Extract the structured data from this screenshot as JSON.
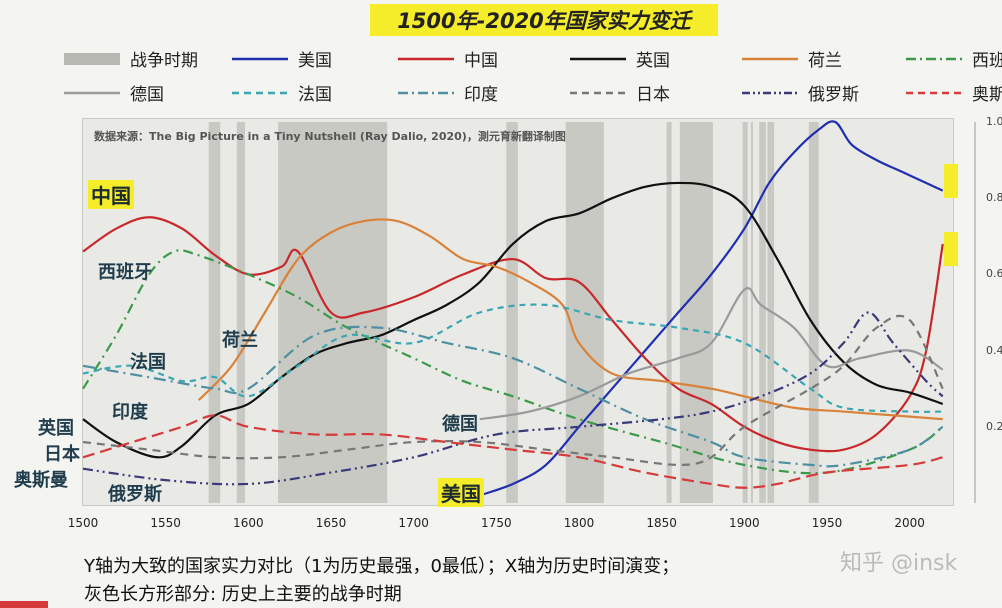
{
  "title": "1500年-2020年国家实力变迁",
  "source_note": "数据来源：The Big Picture in a Tiny Nutshell (Ray Dalio, 2020)，測元育新翻译制图",
  "legend": [
    {
      "label": "战争时期",
      "color": "#b8b8b2",
      "style": "band"
    },
    {
      "label": "美国",
      "color": "#1f2fb0",
      "style": "solid"
    },
    {
      "label": "中国",
      "color": "#c8282b",
      "style": "solid"
    },
    {
      "label": "英国",
      "color": "#111111",
      "style": "solid"
    },
    {
      "label": "荷兰",
      "color": "#d9823a",
      "style": "solid"
    },
    {
      "label": "西班",
      "color": "#3a9a4a",
      "style": "dashdot"
    },
    {
      "label": "德国",
      "color": "#9a9a9a",
      "style": "solid"
    },
    {
      "label": "法国",
      "color": "#3aa6b3",
      "style": "dash"
    },
    {
      "label": "印度",
      "color": "#4e8fa3",
      "style": "dashdot"
    },
    {
      "label": "日本",
      "color": "#777777",
      "style": "dash"
    },
    {
      "label": "俄罗斯",
      "color": "#3a3a7a",
      "style": "dashdotdot"
    },
    {
      "label": "奥斯",
      "color": "#d63a3a",
      "style": "dash"
    }
  ],
  "labels": {
    "china": "中国",
    "spain": "西班牙",
    "netherlands": "荷兰",
    "france": "法国",
    "india": "印度",
    "uk": "英国",
    "japan": "日本",
    "ottoman": "奥斯曼",
    "russia": "俄罗斯",
    "germany": "德国",
    "usa": "美国"
  },
  "footer": {
    "line1": "Y轴为大致的国家实力对比（1为历史最强，0最低）；X轴为历史时间演变；",
    "line2": "灰色长方形部分: 历史上主要的战争时期"
  },
  "watermark": "知乎 @insk",
  "chart_data": {
    "type": "line",
    "title": "1500年-2020年国家实力变迁",
    "xlabel": "",
    "ylabel": "",
    "xlim": [
      1500,
      2025
    ],
    "ylim": [
      0,
      1.0
    ],
    "x_ticks": [
      1500,
      1550,
      1600,
      1650,
      1700,
      1750,
      1800,
      1850,
      1900,
      1950,
      2000
    ],
    "y_ticks": [
      "0.2",
      "0.4",
      "0.6",
      "0.8",
      "1.0"
    ],
    "war_periods": [
      [
        1576,
        1583
      ],
      [
        1593,
        1598
      ],
      [
        1618,
        1684
      ],
      [
        1756,
        1763
      ],
      [
        1792,
        1815
      ],
      [
        1853,
        1856
      ],
      [
        1861,
        1881
      ],
      [
        1899,
        1902
      ],
      [
        1904,
        1905
      ],
      [
        1909,
        1913
      ],
      [
        1914,
        1918
      ],
      [
        1939,
        1945
      ]
    ],
    "series": [
      {
        "name": "美国",
        "color": "#1f2fb0",
        "dash": "",
        "x": [
          1740,
          1760,
          1780,
          1800,
          1820,
          1840,
          1860,
          1880,
          1900,
          1915,
          1930,
          1945,
          1955,
          1965,
          1980,
          1995,
          2010,
          2020
        ],
        "y": [
          0.02,
          0.05,
          0.1,
          0.2,
          0.3,
          0.4,
          0.5,
          0.6,
          0.72,
          0.84,
          0.92,
          0.98,
          1.0,
          0.94,
          0.9,
          0.87,
          0.84,
          0.82
        ]
      },
      {
        "name": "中国",
        "color": "#c8282b",
        "dash": "",
        "x": [
          1500,
          1520,
          1540,
          1560,
          1580,
          1600,
          1620,
          1630,
          1650,
          1670,
          1700,
          1730,
          1760,
          1780,
          1800,
          1820,
          1840,
          1860,
          1880,
          1900,
          1920,
          1940,
          1960,
          1980,
          2000,
          2010,
          2020
        ],
        "y": [
          0.66,
          0.72,
          0.75,
          0.72,
          0.65,
          0.6,
          0.62,
          0.66,
          0.5,
          0.5,
          0.54,
          0.6,
          0.64,
          0.59,
          0.58,
          0.48,
          0.38,
          0.3,
          0.26,
          0.2,
          0.16,
          0.14,
          0.14,
          0.18,
          0.28,
          0.4,
          0.68
        ]
      },
      {
        "name": "英国",
        "color": "#111111",
        "dash": "",
        "x": [
          1500,
          1520,
          1545,
          1560,
          1580,
          1600,
          1620,
          1640,
          1660,
          1680,
          1700,
          1720,
          1740,
          1760,
          1780,
          1800,
          1820,
          1840,
          1860,
          1880,
          1900,
          1920,
          1940,
          1960,
          1980,
          2000,
          2020
        ],
        "y": [
          0.22,
          0.16,
          0.12,
          0.15,
          0.23,
          0.26,
          0.33,
          0.39,
          0.42,
          0.44,
          0.48,
          0.52,
          0.58,
          0.68,
          0.74,
          0.76,
          0.8,
          0.83,
          0.84,
          0.83,
          0.78,
          0.64,
          0.48,
          0.37,
          0.31,
          0.29,
          0.26
        ]
      },
      {
        "name": "荷兰",
        "color": "#d9823a",
        "dash": "",
        "x": [
          1570,
          1590,
          1610,
          1630,
          1650,
          1670,
          1690,
          1710,
          1730,
          1750,
          1770,
          1790,
          1800,
          1820,
          1850,
          1880,
          1900,
          1930,
          1960,
          1990,
          2020
        ],
        "y": [
          0.27,
          0.36,
          0.5,
          0.64,
          0.71,
          0.74,
          0.74,
          0.7,
          0.64,
          0.62,
          0.58,
          0.52,
          0.42,
          0.34,
          0.32,
          0.3,
          0.28,
          0.25,
          0.24,
          0.23,
          0.22
        ]
      },
      {
        "name": "西班",
        "color": "#3a9a4a",
        "dash": "10,5,2,5",
        "x": [
          1500,
          1520,
          1540,
          1555,
          1570,
          1600,
          1630,
          1660,
          1700,
          1730,
          1760,
          1800,
          1850,
          1900,
          1950,
          2000,
          2020
        ],
        "y": [
          0.3,
          0.44,
          0.6,
          0.66,
          0.65,
          0.6,
          0.54,
          0.46,
          0.38,
          0.32,
          0.28,
          0.22,
          0.16,
          0.1,
          0.08,
          0.14,
          0.2
        ]
      },
      {
        "name": "德国",
        "color": "#9a9a9a",
        "dash": "",
        "x": [
          1740,
          1770,
          1800,
          1830,
          1860,
          1880,
          1900,
          1910,
          1930,
          1950,
          1970,
          2000,
          2020
        ],
        "y": [
          0.22,
          0.24,
          0.28,
          0.34,
          0.38,
          0.42,
          0.56,
          0.52,
          0.46,
          0.36,
          0.38,
          0.4,
          0.35
        ]
      },
      {
        "name": "法国",
        "color": "#3aa6b3",
        "dash": "6,5",
        "x": [
          1500,
          1530,
          1560,
          1580,
          1600,
          1630,
          1660,
          1700,
          1740,
          1780,
          1820,
          1860,
          1900,
          1940,
          1960,
          2000,
          2020
        ],
        "y": [
          0.34,
          0.36,
          0.32,
          0.33,
          0.28,
          0.36,
          0.44,
          0.42,
          0.5,
          0.52,
          0.48,
          0.46,
          0.42,
          0.3,
          0.25,
          0.24,
          0.24
        ]
      },
      {
        "name": "印度",
        "color": "#4e8fa3",
        "dash": "12,5,2,5",
        "x": [
          1500,
          1540,
          1580,
          1600,
          1640,
          1680,
          1720,
          1760,
          1800,
          1840,
          1880,
          1900,
          1940,
          1960,
          2000,
          2020
        ],
        "y": [
          0.36,
          0.33,
          0.3,
          0.3,
          0.44,
          0.46,
          0.42,
          0.38,
          0.3,
          0.22,
          0.16,
          0.12,
          0.1,
          0.1,
          0.14,
          0.2
        ]
      },
      {
        "name": "日本",
        "color": "#777777",
        "dash": "8,6",
        "x": [
          1500,
          1540,
          1580,
          1620,
          1660,
          1700,
          1740,
          1780,
          1820,
          1860,
          1880,
          1900,
          1940,
          1960,
          1980,
          2000,
          2020
        ],
        "y": [
          0.16,
          0.14,
          0.12,
          0.12,
          0.14,
          0.16,
          0.16,
          0.14,
          0.12,
          0.1,
          0.12,
          0.2,
          0.3,
          0.36,
          0.46,
          0.48,
          0.3
        ]
      },
      {
        "name": "俄罗斯",
        "color": "#3a3a7a",
        "dash": "10,4,2,4,2,4",
        "x": [
          1500,
          1550,
          1600,
          1650,
          1700,
          1750,
          1800,
          1850,
          1880,
          1910,
          1940,
          1960,
          1975,
          1990,
          2010,
          2020
        ],
        "y": [
          0.09,
          0.06,
          0.05,
          0.08,
          0.12,
          0.18,
          0.2,
          0.22,
          0.24,
          0.28,
          0.34,
          0.42,
          0.5,
          0.42,
          0.32,
          0.28
        ]
      },
      {
        "name": "奥斯",
        "color": "#d63a3a",
        "dash": "12,6",
        "x": [
          1500,
          1530,
          1560,
          1580,
          1600,
          1640,
          1680,
          1720,
          1760,
          1800,
          1840,
          1880,
          1900,
          1920,
          1950,
          2000,
          2020
        ],
        "y": [
          0.12,
          0.16,
          0.2,
          0.23,
          0.2,
          0.18,
          0.18,
          0.16,
          0.14,
          0.12,
          0.08,
          0.05,
          0.04,
          0.05,
          0.08,
          0.1,
          0.12
        ]
      }
    ]
  }
}
